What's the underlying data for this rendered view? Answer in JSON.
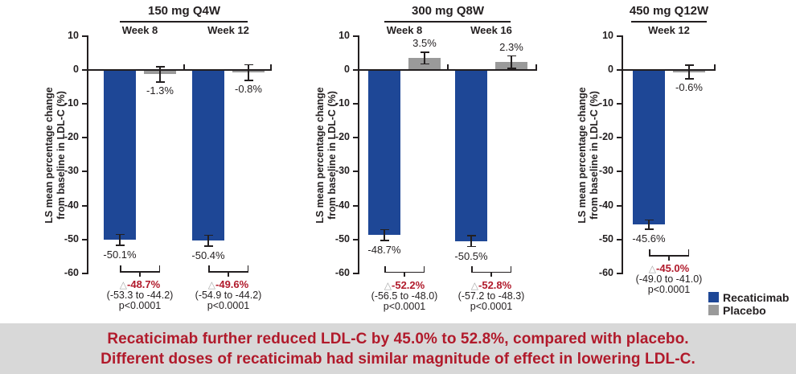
{
  "colors": {
    "recaticimab": "#1e4796",
    "placebo": "#9a9a9a",
    "axis": "#231f20",
    "delta_red": "#b11a2b",
    "banner_bg": "#d8d8d8",
    "banner_text": "#b11a2b",
    "triangle_gray": "#a8a8a8"
  },
  "delta_symbol": "△",
  "legend": [
    {
      "label": "Recaticimab",
      "color": "#1e4796"
    },
    {
      "label": "Placebo",
      "color": "#9a9a9a"
    }
  ],
  "banner": {
    "line1": "Recaticimab further reduced LDL-C by 45.0% to 52.8%, compared with placebo.",
    "line2": "Different doses of recaticimab had similar magnitude of effect in lowering LDL-C."
  },
  "chart_data": [
    {
      "type": "bar",
      "title": "150 mg Q4W",
      "ylabel": [
        "LS mean percentage change",
        "from baseline in LDL-C (%)"
      ],
      "ylim": [
        -60,
        10
      ],
      "yticks": [
        10,
        0,
        -10,
        -20,
        -30,
        -40,
        -50,
        -60
      ],
      "series_names": [
        "Recaticimab",
        "Placebo"
      ],
      "groups": [
        {
          "label": "Week 8",
          "recaticimab": {
            "value": -50.1,
            "label": "-50.1%",
            "err": 1.6
          },
          "placebo": {
            "value": -1.3,
            "label": "-1.3%",
            "err": 2.2
          },
          "difference": {
            "delta": "-48.7%",
            "ci": "(-53.3 to -44.2)",
            "p": "p<0.0001"
          }
        },
        {
          "label": "Week 12",
          "recaticimab": {
            "value": -50.4,
            "label": "-50.4%",
            "err": 1.6
          },
          "placebo": {
            "value": -0.8,
            "label": "-0.8%",
            "err": 2.3
          },
          "difference": {
            "delta": "-49.6%",
            "ci": "(-54.9 to -44.2)",
            "p": "p<0.0001"
          }
        }
      ]
    },
    {
      "type": "bar",
      "title": "300 mg Q8W",
      "ylabel": [
        "LS mean percentage change",
        "from baseline in LDL-C (%)"
      ],
      "ylim": [
        -60,
        10
      ],
      "yticks": [
        10,
        0,
        -10,
        -20,
        -30,
        -40,
        -50,
        -60
      ],
      "series_names": [
        "Recaticimab",
        "Placebo"
      ],
      "groups": [
        {
          "label": "Week 8",
          "recaticimab": {
            "value": -48.7,
            "label": "-48.7%",
            "err": 1.6
          },
          "placebo": {
            "value": 3.5,
            "label": "3.5%",
            "err": 1.7
          },
          "difference": {
            "delta": "-52.2%",
            "ci": "(-56.5 to -48.0)",
            "p": "p<0.0001"
          }
        },
        {
          "label": "Week 16",
          "recaticimab": {
            "value": -50.5,
            "label": "-50.5%",
            "err": 1.6
          },
          "placebo": {
            "value": 2.3,
            "label": "2.3%",
            "err": 1.8
          },
          "difference": {
            "delta": "-52.8%",
            "ci": "(-57.2 to -48.3)",
            "p": "p<0.0001"
          }
        }
      ]
    },
    {
      "type": "bar",
      "title": "450 mg Q12W",
      "ylabel": [
        "LS mean percentage change",
        "from baseline in LDL-C (%)"
      ],
      "ylim": [
        -60,
        10
      ],
      "yticks": [
        10,
        0,
        -10,
        -20,
        -30,
        -40,
        -50,
        -60
      ],
      "series_names": [
        "Recaticimab",
        "Placebo"
      ],
      "groups": [
        {
          "label": "Week 12",
          "recaticimab": {
            "value": -45.6,
            "label": "-45.6%",
            "err": 1.4
          },
          "placebo": {
            "value": -0.6,
            "label": "-0.6%",
            "err": 2.0
          },
          "difference": {
            "delta": "-45.0%",
            "ci": "(-49.0 to -41.0)",
            "p": "p<0.0001"
          }
        }
      ]
    }
  ]
}
